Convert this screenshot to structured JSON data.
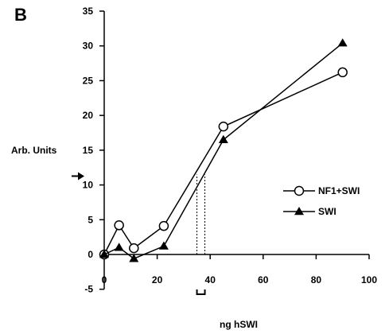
{
  "panel_label": "B",
  "chart_data": {
    "type": "line",
    "xlabel": "ng hSWI",
    "ylabel": "Arb.  Units",
    "xlim": [
      0,
      100
    ],
    "ylim": [
      -5,
      35
    ],
    "x_ticks": [
      0,
      20,
      40,
      60,
      80,
      100
    ],
    "y_ticks": [
      -5,
      0,
      5,
      10,
      15,
      20,
      25,
      30,
      35
    ],
    "grid": false,
    "legend": "center-right",
    "series": [
      {
        "name": "NF1+SWI",
        "marker": "open-circle",
        "x": [
          0,
          5.6,
          11.2,
          22.5,
          45,
          90
        ],
        "y": [
          0,
          4.2,
          0.9,
          4.1,
          18.4,
          26.2
        ]
      },
      {
        "name": "SWI",
        "marker": "filled-triangle",
        "x": [
          0,
          5.6,
          11.2,
          22.5,
          45,
          90
        ],
        "y": [
          0,
          1.0,
          -0.6,
          1.2,
          16.5,
          30.4
        ]
      }
    ],
    "annotations": {
      "half_max_lines": [
        {
          "x": 35,
          "y": 11.5
        },
        {
          "x": 38,
          "y": 11.5
        }
      ],
      "bracket_range": [
        35,
        38
      ],
      "arrow_at_y": 11.5
    }
  }
}
